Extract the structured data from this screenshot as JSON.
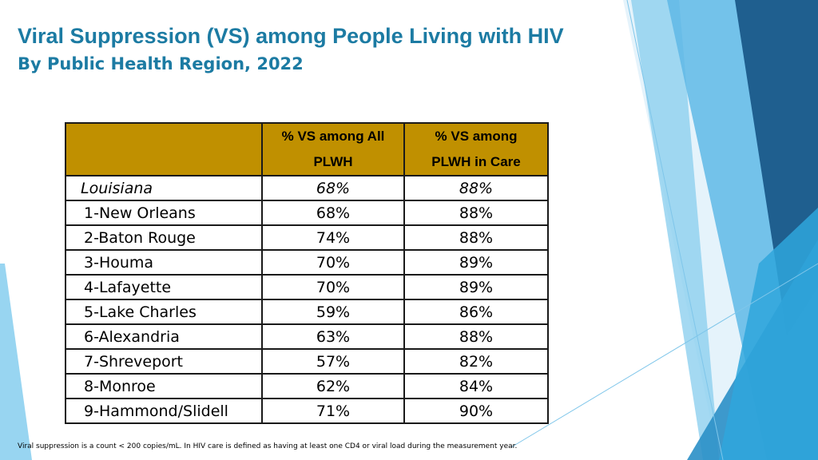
{
  "title": "Viral Suppression (VS) among People Living with HIV",
  "subtitle": "By Public Health Region, 2022",
  "table": {
    "headers": {
      "blank": "",
      "col1_line1": "% VS among All",
      "col1_line2": "PLWH",
      "col2_line1": "% VS among",
      "col2_line2": "PLWH in Care"
    },
    "rows": [
      {
        "region": "Louisiana",
        "all": "68%",
        "care": "88%"
      },
      {
        "region": "1-New Orleans",
        "all": "68%",
        "care": "88%"
      },
      {
        "region": "2-Baton Rouge",
        "all": "74%",
        "care": "88%"
      },
      {
        "region": "3-Houma",
        "all": "70%",
        "care": "89%"
      },
      {
        "region": "4-Lafayette",
        "all": "70%",
        "care": "89%"
      },
      {
        "region": "5-Lake Charles",
        "all": "59%",
        "care": "86%"
      },
      {
        "region": "6-Alexandria",
        "all": "63%",
        "care": "88%"
      },
      {
        "region": "7-Shreveport",
        "all": "57%",
        "care": "82%"
      },
      {
        "region": "8-Monroe",
        "all": "62%",
        "care": "84%"
      },
      {
        "region": "9-Hammond/Slidell",
        "all": "71%",
        "care": "90%"
      }
    ]
  },
  "footnote": "Viral suppression is a count < 200 copies/mL.  In HIV care is defined as having at least one CD4 or viral load during the measurement year.",
  "colors": {
    "title": "#1c7ba3",
    "header_fill": "#c09000",
    "accent_dark": "#1f5f8f",
    "accent_mid": "#2a8fc7",
    "accent_light": "#5fb8e6",
    "accent_pale": "#a7dbf2"
  }
}
